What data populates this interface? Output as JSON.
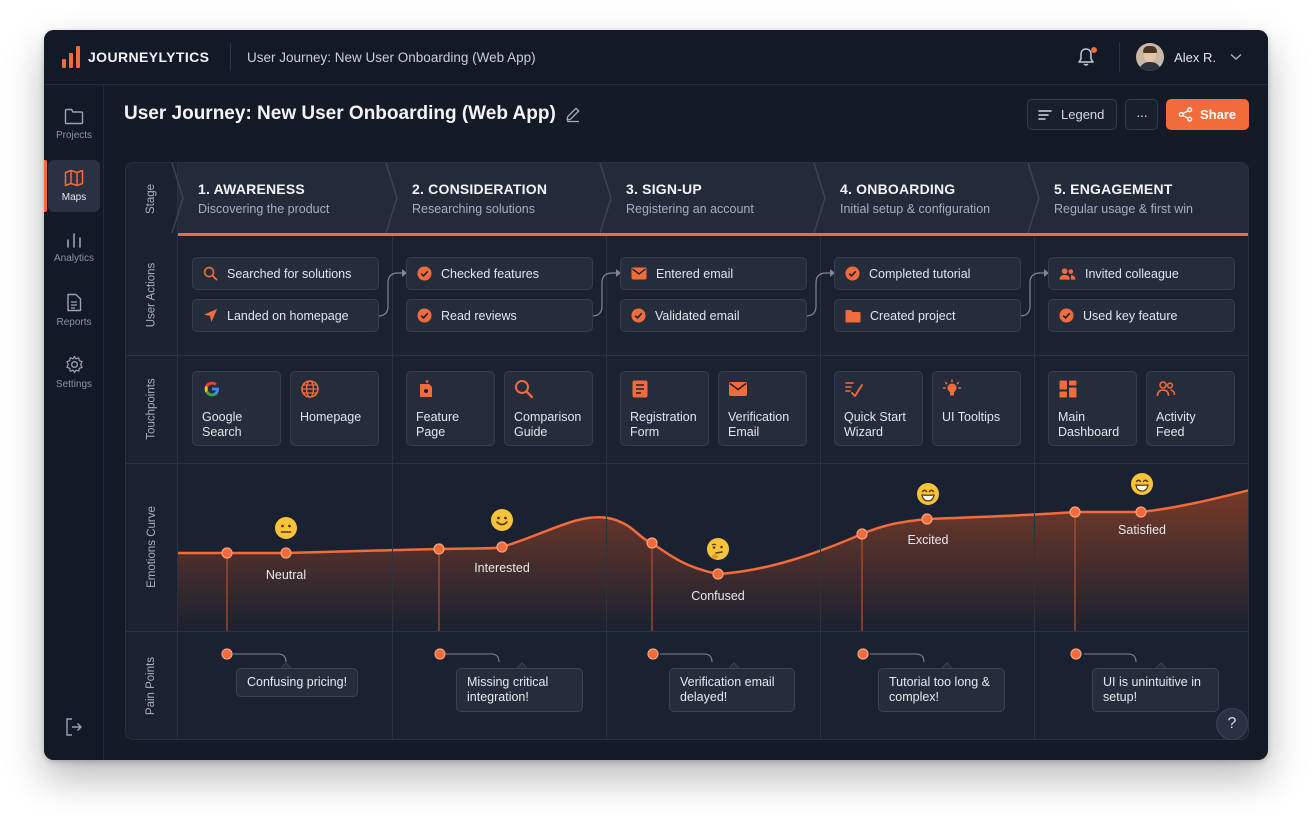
{
  "app": {
    "name": "JOURNEYLYTICS",
    "window_title": "User Journey: New User Onboarding (Web App)",
    "accent": "#f26b3a"
  },
  "user": {
    "name": "Alex R."
  },
  "sidebar": {
    "items": [
      {
        "label": "Projects",
        "icon": "folder-icon"
      },
      {
        "label": "Maps",
        "icon": "map-icon",
        "active": true
      },
      {
        "label": "Analytics",
        "icon": "bar-chart-icon"
      },
      {
        "label": "Reports",
        "icon": "document-icon"
      },
      {
        "label": "Settings",
        "icon": "gear-icon"
      }
    ]
  },
  "page": {
    "title": "User Journey: New User Onboarding (Web App)"
  },
  "toolbar": {
    "legend_label": "Legend",
    "more_label": "···",
    "share_label": "Share"
  },
  "rows": {
    "stage": "Stage",
    "actions": "User Actions",
    "touchpoints": "Touchpoints",
    "emotions": "Emotions Curve",
    "pain": "Pain Points"
  },
  "stages": [
    {
      "title": "1. AWARENESS",
      "subtitle": "Discovering the product",
      "actions": [
        {
          "label": "Searched for solutions",
          "icon": "search-icon"
        },
        {
          "label": "Landed on homepage",
          "icon": "navigation-arrow-icon"
        }
      ],
      "touchpoints": [
        {
          "label": "Google Search",
          "icon": "google-icon"
        },
        {
          "label": "Homepage",
          "icon": "globe-icon"
        }
      ],
      "emotion": {
        "label": "Neutral",
        "emoji": "neutral-face-icon"
      },
      "pain_point": "Confusing pricing!"
    },
    {
      "title": "2. CONSIDERATION",
      "subtitle": "Researching solutions",
      "actions": [
        {
          "label": "Checked features",
          "icon": "check-circle-icon"
        },
        {
          "label": "Read reviews",
          "icon": "check-circle-icon"
        }
      ],
      "touchpoints": [
        {
          "label": "Feature Page",
          "icon": "feature-page-icon"
        },
        {
          "label": "Comparison Guide",
          "icon": "search-icon"
        }
      ],
      "emotion": {
        "label": "Interested",
        "emoji": "smiling-face-icon"
      },
      "pain_point": "Missing critical integration!"
    },
    {
      "title": "3. SIGN-UP",
      "subtitle": "Registering an account",
      "actions": [
        {
          "label": "Entered email",
          "icon": "mail-icon"
        },
        {
          "label": "Validated email",
          "icon": "check-circle-icon"
        }
      ],
      "touchpoints": [
        {
          "label": "Registration Form",
          "icon": "form-icon"
        },
        {
          "label": "Verification Email",
          "icon": "mail-icon"
        }
      ],
      "emotion": {
        "label": "Confused",
        "emoji": "thinking-face-icon"
      },
      "pain_point": "Verification email delayed!"
    },
    {
      "title": "4. ONBOARDING",
      "subtitle": "Initial setup & configuration",
      "actions": [
        {
          "label": "Completed tutorial",
          "icon": "check-circle-icon"
        },
        {
          "label": "Created project",
          "icon": "folder-icon"
        }
      ],
      "touchpoints": [
        {
          "label": "Quick Start Wizard",
          "icon": "wizard-icon"
        },
        {
          "label": "UI Tooltips",
          "icon": "lightbulb-icon"
        }
      ],
      "emotion": {
        "label": "Excited",
        "emoji": "grinning-face-icon"
      },
      "pain_point": "Tutorial too long & complex!"
    },
    {
      "title": "5. ENGAGEMENT",
      "subtitle": "Regular usage & first win",
      "actions": [
        {
          "label": "Invited colleague",
          "icon": "users-icon"
        },
        {
          "label": "Used key feature",
          "icon": "check-circle-icon"
        }
      ],
      "touchpoints": [
        {
          "label": "Main Dashboard",
          "icon": "dashboard-icon"
        },
        {
          "label": "Activity Feed",
          "icon": "users-icon"
        }
      ],
      "emotion": {
        "label": "Satisfied",
        "emoji": "grinning-face-icon"
      },
      "pain_point": "UI is unintuitive in setup!"
    }
  ],
  "help_label": "?"
}
